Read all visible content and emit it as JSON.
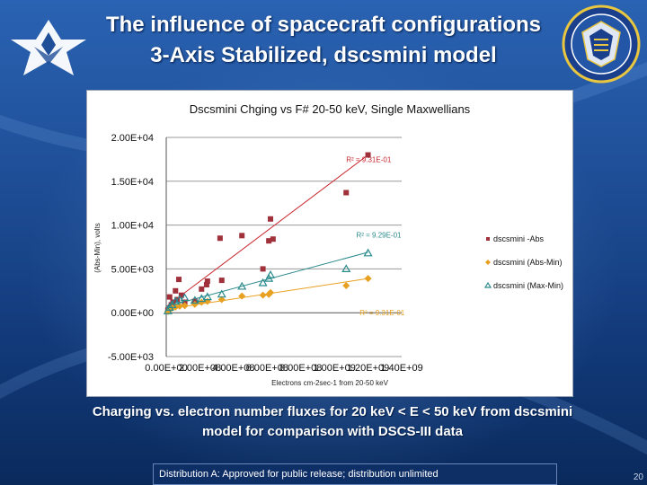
{
  "slide": {
    "title_line1": "The influence of spacecraft configurations",
    "title_line2": "3-Axis Stabilized, dscsmini model",
    "caption_line1": "Charging vs. electron number fluxes for 20 keV < E < 50 keV from dscsmini",
    "caption_line2": "model for comparison with DSCS-III data",
    "footer": "Distribution A: Approved for public release; distribution unlimited",
    "page_number": "20",
    "colors": {
      "background_top": "#2a63b3",
      "background_bottom": "#0a2a5c",
      "footer_box": "#0e2e66"
    }
  },
  "chart_data": {
    "type": "scatter",
    "title": "Dscsmini Chging vs F# 20-50 keV, Single Maxwellians",
    "xlabel": "Electrons cm-2sec-1 from 20-50 keV",
    "ylabel": "(Abs-Min), volts",
    "xlim": [
      0,
      1400000000
    ],
    "ylim": [
      -5000,
      20000
    ],
    "x_ticks": [
      "0.00E+00",
      "2.00E+08",
      "4.00E+08",
      "6.00E+08",
      "8.00E+08",
      "1.00E+09",
      "1.20E+09",
      "1.40E+09"
    ],
    "y_ticks": [
      "-5.00E+03",
      "0.00E+00",
      "5.00E+03",
      "1.00E+04",
      "1.50E+04",
      "2.00E+04"
    ],
    "y_tick_values": [
      -5000,
      0,
      5000,
      10000,
      15000,
      20000
    ],
    "grid": "horizontal",
    "legend_position": "right",
    "series": [
      {
        "name": "dscsmini -Abs",
        "color": "#a0303a",
        "marker": "square",
        "points": [
          [
            10000000,
            300
          ],
          [
            20000000,
            1800
          ],
          [
            30000000,
            900
          ],
          [
            40000000,
            1200
          ],
          [
            55000000,
            2500
          ],
          [
            65000000,
            1500
          ],
          [
            75000000,
            3800
          ],
          [
            90000000,
            2000
          ],
          [
            110000000,
            1200
          ],
          [
            170000000,
            1300
          ],
          [
            210000000,
            2700
          ],
          [
            240000000,
            3200
          ],
          [
            245000000,
            3600
          ],
          [
            320000000,
            8500
          ],
          [
            330000000,
            3700
          ],
          [
            450000000,
            8800
          ],
          [
            575000000,
            5000
          ],
          [
            610000000,
            8200
          ],
          [
            635000000,
            8400
          ],
          [
            620000000,
            10700
          ],
          [
            1070000000,
            13700
          ],
          [
            1200000000,
            18000
          ]
        ]
      },
      {
        "name": "dscsmini (Abs-Min)",
        "color": "#e8a020",
        "marker": "diamond",
        "points": [
          [
            10000000,
            150
          ],
          [
            20000000,
            350
          ],
          [
            35000000,
            550
          ],
          [
            55000000,
            650
          ],
          [
            80000000,
            750
          ],
          [
            110000000,
            800
          ],
          [
            170000000,
            950
          ],
          [
            210000000,
            1200
          ],
          [
            245000000,
            1300
          ],
          [
            330000000,
            1500
          ],
          [
            450000000,
            1900
          ],
          [
            575000000,
            2000
          ],
          [
            610000000,
            2100
          ],
          [
            620000000,
            2300
          ],
          [
            1070000000,
            3100
          ],
          [
            1200000000,
            3900
          ]
        ]
      },
      {
        "name": "dscsmini (Max-Min)",
        "color": "#2a8a8c",
        "marker": "triangle",
        "points": [
          [
            10000000,
            200
          ],
          [
            20000000,
            600
          ],
          [
            35000000,
            900
          ],
          [
            55000000,
            1300
          ],
          [
            80000000,
            1500
          ],
          [
            110000000,
            1700
          ],
          [
            170000000,
            1400
          ],
          [
            210000000,
            1600
          ],
          [
            245000000,
            1800
          ],
          [
            330000000,
            2100
          ],
          [
            450000000,
            3000
          ],
          [
            575000000,
            3400
          ],
          [
            610000000,
            3900
          ],
          [
            620000000,
            4300
          ],
          [
            1070000000,
            5000
          ],
          [
            1200000000,
            6800
          ]
        ]
      }
    ],
    "trendlines": [
      {
        "series": "dscsmini -Abs",
        "color": "#c8242c",
        "x": [
          0,
          1200000000
        ],
        "y": [
          700,
          18000
        ],
        "r2_label": "R² = 9.31E-01",
        "label_x": 1070000000,
        "label_y": 17200
      },
      {
        "series": "dscsmini (Max-Min)",
        "color": "#2a8a8c",
        "x": [
          0,
          1200000000
        ],
        "y": [
          700,
          6900
        ],
        "r2_label": "R² = 9.29E-01",
        "label_x": 1130000000,
        "label_y": 8600
      },
      {
        "series": "dscsmini (Abs-Min)",
        "color": "#e8a020",
        "x": [
          0,
          1200000000
        ],
        "y": [
          400,
          3900
        ],
        "r2_label": "R² = 9.31E-01",
        "label_x": 1150000000,
        "label_y": -300
      }
    ]
  }
}
